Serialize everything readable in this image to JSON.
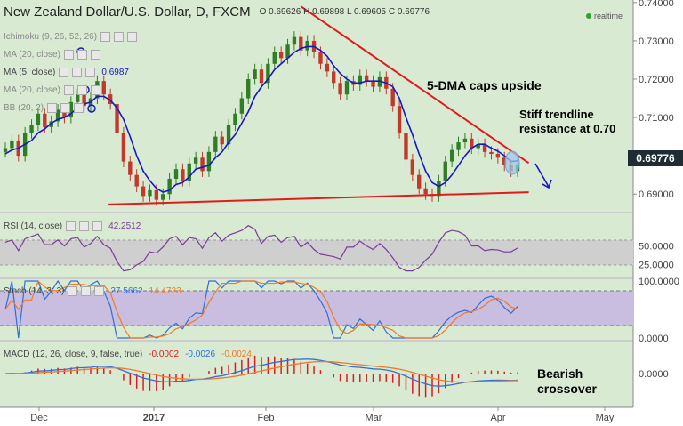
{
  "header": {
    "symbol": "New Zealand Dollar/U.S. Dollar, D, FXCM",
    "ohlc": "O 0.69626 H 0.69898 L 0.69605 C 0.69776",
    "realtime": "realtime"
  },
  "overlays": [
    {
      "label": "Ichimoku (9, 26, 52, 26)",
      "value": ""
    },
    {
      "label": "MA (20, close)",
      "value": ""
    },
    {
      "label": "MA (5, close)",
      "value": "0.6987"
    },
    {
      "label": "MA (20, close)",
      "value": ""
    },
    {
      "label": "BB (20, 2)",
      "value": ""
    }
  ],
  "indicators": {
    "rsi": {
      "label": "RSI (14, close)",
      "value": "42.2512"
    },
    "stoch": {
      "label": "Stoch (14, 3, 3)",
      "k": "27.5662",
      "d": "14.4723"
    },
    "macd": {
      "label": "MACD (12, 26, close, 9, false, true)",
      "hist": "-0.0002",
      "macd": "-0.0026",
      "signal": "-0.0024"
    }
  },
  "annotations": {
    "dma": "5-DMA caps upside",
    "trend_line1": "Stiff trendline",
    "trend_line2": "resistance at 0.70",
    "bear_line1": "Bearish",
    "bear_line2": "crossover"
  },
  "colors": {
    "bg": "#d9ead3",
    "up": "#2f7d24",
    "down": "#c0392b",
    "ma": "#1717c8",
    "trendline": "#e31a1c",
    "rsi": "#7b3b9a",
    "stoch_k": "#2f6fd6",
    "stoch_d": "#f07a2a",
    "macd": "#2f6fd6",
    "signal": "#f07a2a",
    "hist": "#e31a1c",
    "pricetag_bg": "#1f2c33"
  },
  "chart_data": {
    "type": "candlestick",
    "price_axis": {
      "ticks": [
        "0.74000",
        "0.73000",
        "0.72000",
        "0.71000",
        "0.70000",
        "0.69000"
      ],
      "range": [
        0.6868,
        0.7402
      ]
    },
    "last_price": "0.69776",
    "x_ticks": [
      "Dec",
      "2017",
      "Feb",
      "Mar",
      "Apr",
      "May"
    ],
    "rsi_ticks": [
      "50.0000",
      "25.0000"
    ],
    "stoch_ticks": [
      "100.0000",
      "0.0000"
    ],
    "macd_ticks": [
      "0.0000"
    ],
    "close": [
      0.702,
      0.704,
      0.7,
      0.706,
      0.708,
      0.711,
      0.7075,
      0.709,
      0.712,
      0.71,
      0.714,
      0.716,
      0.713,
      0.715,
      0.7195,
      0.716,
      0.7135,
      0.706,
      0.6985,
      0.695,
      0.692,
      0.6895,
      0.691,
      0.6885,
      0.69,
      0.694,
      0.6965,
      0.6935,
      0.698,
      0.6995,
      0.696,
      0.701,
      0.705,
      0.703,
      0.708,
      0.711,
      0.715,
      0.72,
      0.7225,
      0.719,
      0.724,
      0.727,
      0.7255,
      0.729,
      0.731,
      0.7275,
      0.73,
      0.727,
      0.724,
      0.722,
      0.719,
      0.716,
      0.7195,
      0.7185,
      0.721,
      0.7195,
      0.718,
      0.7205,
      0.7175,
      0.713,
      0.706,
      0.699,
      0.695,
      0.6915,
      0.69,
      0.6895,
      0.6935,
      0.6985,
      0.7015,
      0.7035,
      0.7045,
      0.702,
      0.703,
      0.701,
      0.7005,
      0.6995,
      0.6975,
      0.696,
      0.6978
    ],
    "ma5": [
      0.7005,
      0.7015,
      0.702,
      0.703,
      0.704,
      0.706,
      0.707,
      0.7085,
      0.7095,
      0.71,
      0.711,
      0.7125,
      0.7135,
      0.714,
      0.7155,
      0.7155,
      0.7145,
      0.7125,
      0.7095,
      0.705,
      0.7,
      0.696,
      0.6935,
      0.6915,
      0.6905,
      0.691,
      0.6925,
      0.693,
      0.6945,
      0.6965,
      0.697,
      0.6975,
      0.6995,
      0.701,
      0.7035,
      0.7055,
      0.7085,
      0.7115,
      0.7155,
      0.718,
      0.72,
      0.7225,
      0.724,
      0.7255,
      0.727,
      0.728,
      0.7285,
      0.7285,
      0.7275,
      0.726,
      0.7235,
      0.7215,
      0.72,
      0.719,
      0.719,
      0.7195,
      0.7195,
      0.7195,
      0.719,
      0.718,
      0.715,
      0.71,
      0.7055,
      0.7005,
      0.696,
      0.693,
      0.692,
      0.693,
      0.695,
      0.6975,
      0.7,
      0.702,
      0.703,
      0.703,
      0.702,
      0.7012,
      0.7,
      0.6985,
      0.6987
    ],
    "trendline_upper": [
      [
        45,
        0.739
      ],
      [
        77,
        0.6995
      ]
    ],
    "trendline_lower": [
      [
        16,
        0.6873
      ],
      [
        77,
        0.6905
      ]
    ]
  }
}
